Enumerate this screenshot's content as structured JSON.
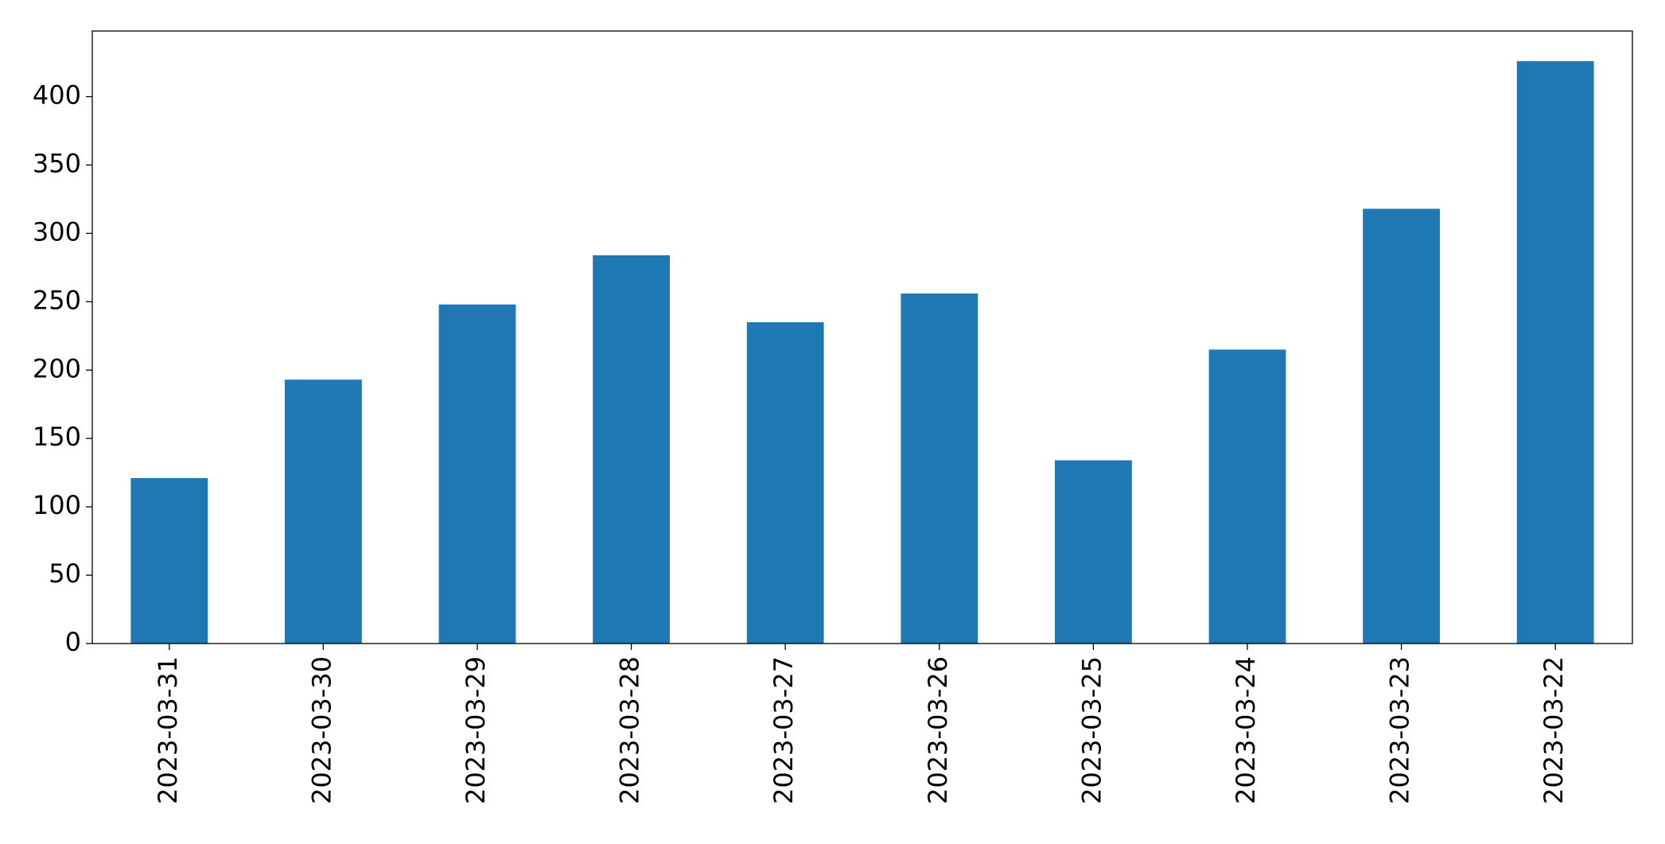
{
  "chart_data": {
    "type": "bar",
    "categories": [
      "2023-03-31",
      "2023-03-30",
      "2023-03-29",
      "2023-03-28",
      "2023-03-27",
      "2023-03-26",
      "2023-03-25",
      "2023-03-24",
      "2023-03-23",
      "2023-03-22"
    ],
    "values": [
      121,
      193,
      248,
      284,
      235,
      256,
      134,
      215,
      318,
      426
    ],
    "color": "#1f77b4",
    "ylim": [
      0,
      448
    ],
    "yticks": [
      0,
      50,
      100,
      150,
      200,
      250,
      300,
      350,
      400
    ],
    "grid": false
  }
}
